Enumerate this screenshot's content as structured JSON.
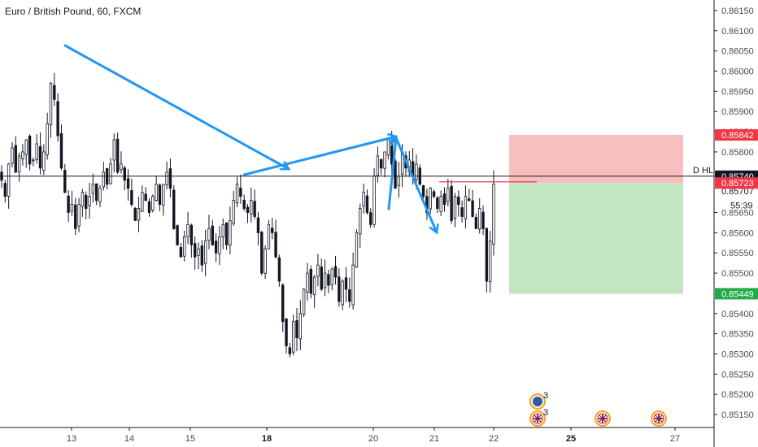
{
  "title": "Euro / British Pound, 60, FXCM",
  "colors": {
    "candle": "#131722",
    "arrow": "#2196f3",
    "stop_zone": "#f8bcbc",
    "target_zone": "#bfe4bf",
    "stop_label": "#f23645",
    "target_label": "#22ab47",
    "hline": "#131722",
    "red_line": "#f23645",
    "axis_text": "#4a4a4a"
  },
  "chart_data": {
    "type": "candlestick",
    "ylim": [
      0.8513,
      0.8617
    ],
    "y_ticks": [
      "0.86150",
      "0.86100",
      "0.86050",
      "0.86000",
      "0.85950",
      "0.85900",
      "0.85850",
      "0.85800",
      "0.85650",
      "0.85600",
      "0.85550",
      "0.85500",
      "0.85400",
      "0.85350",
      "0.85300",
      "0.85250",
      "0.85200",
      "0.85150"
    ],
    "x_ticks": [
      {
        "label": "13",
        "bold": false
      },
      {
        "label": "14",
        "bold": false
      },
      {
        "label": "15",
        "bold": false
      },
      {
        "label": "18",
        "bold": true
      },
      {
        "label": "20",
        "bold": false
      },
      {
        "label": "21",
        "bold": false
      },
      {
        "label": "22",
        "bold": false
      },
      {
        "label": "25",
        "bold": true
      },
      {
        "label": "27",
        "bold": false
      }
    ],
    "hline": {
      "label": "D HL",
      "value": "0.85740"
    },
    "stop_label": "0.85842",
    "entry_label": "0.85723",
    "partial_label": "0.85707",
    "countdown": "55:39",
    "target_label": "0.85449",
    "event_counts": [
      "3",
      "3"
    ],
    "price_path": [
      0.8573,
      0.8569,
      0.8577,
      0.8581,
      0.8575,
      0.8579,
      0.858,
      0.8583,
      0.8577,
      0.8578,
      0.8582,
      0.8576,
      0.858,
      0.8587,
      0.8597,
      0.8593,
      0.8584,
      0.8576,
      0.857,
      0.8565,
      0.8567,
      0.8561,
      0.8567,
      0.857,
      0.8566,
      0.8569,
      0.8572,
      0.8568,
      0.8571,
      0.8575,
      0.8572,
      0.8577,
      0.8583,
      0.8575,
      0.8577,
      0.8573,
      0.8571,
      0.8567,
      0.8563,
      0.8566,
      0.857,
      0.8568,
      0.8565,
      0.8569,
      0.8572,
      0.8567,
      0.8572,
      0.8575,
      0.8571,
      0.8561,
      0.8557,
      0.8554,
      0.8559,
      0.8562,
      0.8557,
      0.8554,
      0.8556,
      0.8552,
      0.8558,
      0.8561,
      0.8557,
      0.8555,
      0.8559,
      0.8562,
      0.8557,
      0.8563,
      0.8568,
      0.8572,
      0.8569,
      0.8566,
      0.8565,
      0.8568,
      0.8564,
      0.856,
      0.855,
      0.8556,
      0.8562,
      0.856,
      0.8554,
      0.8548,
      0.8538,
      0.8532,
      0.853,
      0.8538,
      0.8534,
      0.854,
      0.8546,
      0.855,
      0.8545,
      0.8549,
      0.8552,
      0.8546,
      0.855,
      0.8547,
      0.8551,
      0.8549,
      0.8543,
      0.8548,
      0.8546,
      0.8543,
      0.8552,
      0.856,
      0.8566,
      0.857,
      0.8565,
      0.8562,
      0.8574,
      0.8579,
      0.8576,
      0.858,
      0.8583,
      0.8577,
      0.8571,
      0.8574,
      0.858,
      0.8576,
      0.8578,
      0.8574,
      0.8577,
      0.8572,
      0.8569,
      0.8565,
      0.8571,
      0.8569,
      0.8566,
      0.8569,
      0.8567,
      0.8571,
      0.8563,
      0.8569,
      0.8567,
      0.8564,
      0.8569,
      0.8568,
      0.8564,
      0.8561,
      0.8566,
      0.8561,
      0.8548,
      0.8558,
      0.8572
    ]
  },
  "series_names": {
    "arrows": "trend-arrows"
  }
}
